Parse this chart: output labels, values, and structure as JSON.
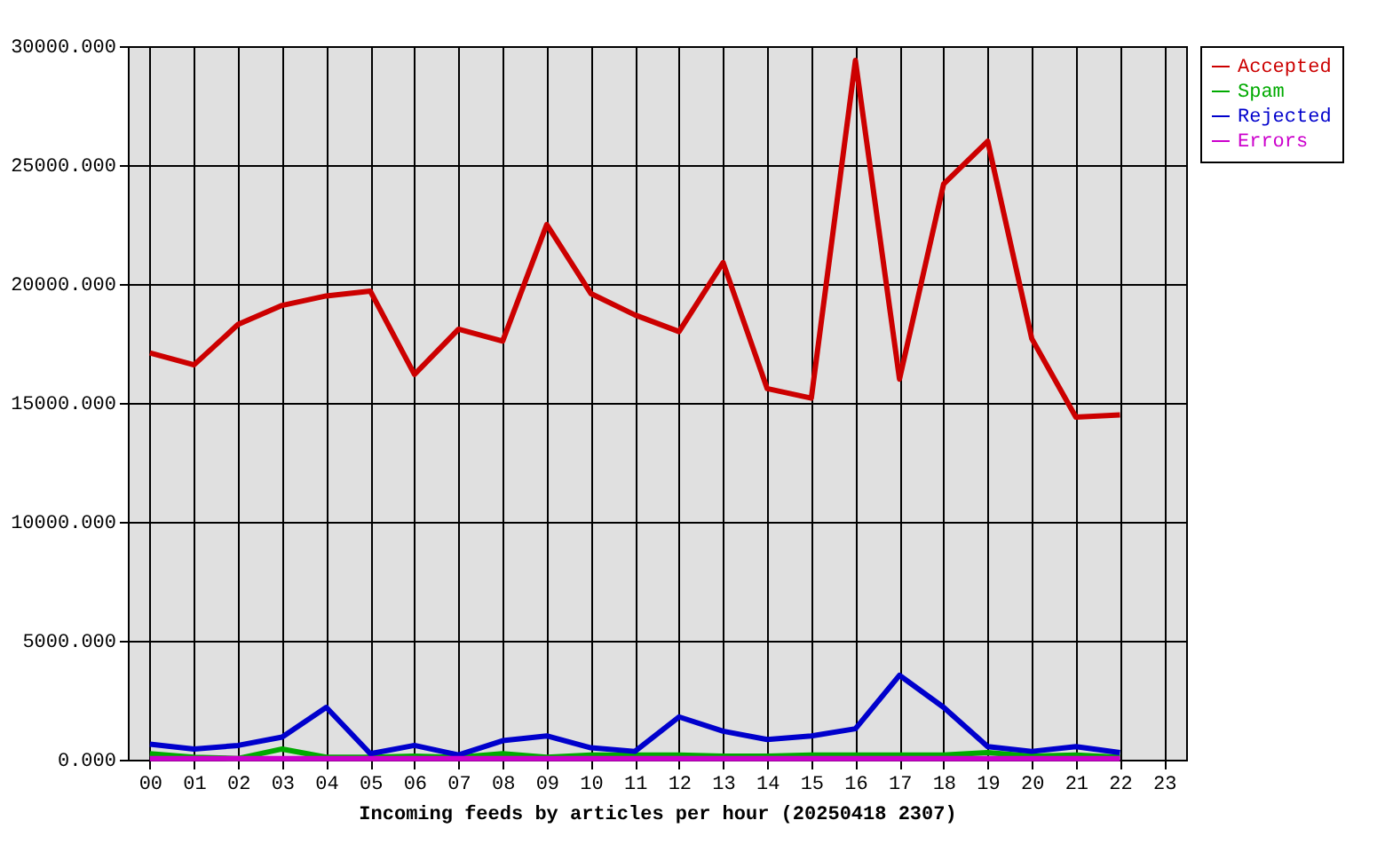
{
  "chart_data": {
    "type": "line",
    "xlabel": "Incoming feeds by articles per hour (20250418 2307)",
    "categories": [
      "00",
      "01",
      "02",
      "03",
      "04",
      "05",
      "06",
      "07",
      "08",
      "09",
      "10",
      "11",
      "12",
      "13",
      "14",
      "15",
      "16",
      "17",
      "18",
      "19",
      "20",
      "21",
      "22",
      "23"
    ],
    "series": [
      {
        "name": "Accepted",
        "color": "#cc0000",
        "values": [
          17100,
          16600,
          18300,
          19100,
          19500,
          19700,
          16200,
          18100,
          17600,
          22500,
          19600,
          18700,
          18000,
          20900,
          15600,
          15200,
          29400,
          16000,
          24200,
          26000,
          17700,
          14400,
          14500,
          null
        ]
      },
      {
        "name": "Spam",
        "color": "#00aa00",
        "values": [
          250,
          100,
          50,
          450,
          100,
          100,
          150,
          100,
          250,
          100,
          200,
          200,
          200,
          150,
          150,
          200,
          200,
          200,
          200,
          300,
          150,
          200,
          100,
          null
        ]
      },
      {
        "name": "Rejected",
        "color": "#0000cc",
        "values": [
          650,
          450,
          600,
          950,
          2200,
          250,
          600,
          200,
          800,
          1000,
          500,
          350,
          1800,
          1200,
          850,
          1000,
          1300,
          3550,
          2200,
          550,
          350,
          550,
          300,
          null
        ]
      },
      {
        "name": "Errors",
        "color": "#cc00cc",
        "values": [
          50,
          50,
          50,
          50,
          50,
          50,
          50,
          50,
          50,
          50,
          50,
          50,
          50,
          50,
          50,
          50,
          50,
          50,
          50,
          50,
          50,
          50,
          50,
          null
        ]
      }
    ],
    "ylim": [
      0,
      30000
    ],
    "yticks": [
      {
        "value": 0,
        "label": "0.000"
      },
      {
        "value": 5000,
        "label": "5000.000"
      },
      {
        "value": 10000,
        "label": "10000.000"
      },
      {
        "value": 15000,
        "label": "15000.000"
      },
      {
        "value": 20000,
        "label": "20000.000"
      },
      {
        "value": 25000,
        "label": "25000.000"
      },
      {
        "value": 30000,
        "label": "30000.000"
      }
    ],
    "grid": true,
    "legend": "top right",
    "line_style": "solid"
  }
}
